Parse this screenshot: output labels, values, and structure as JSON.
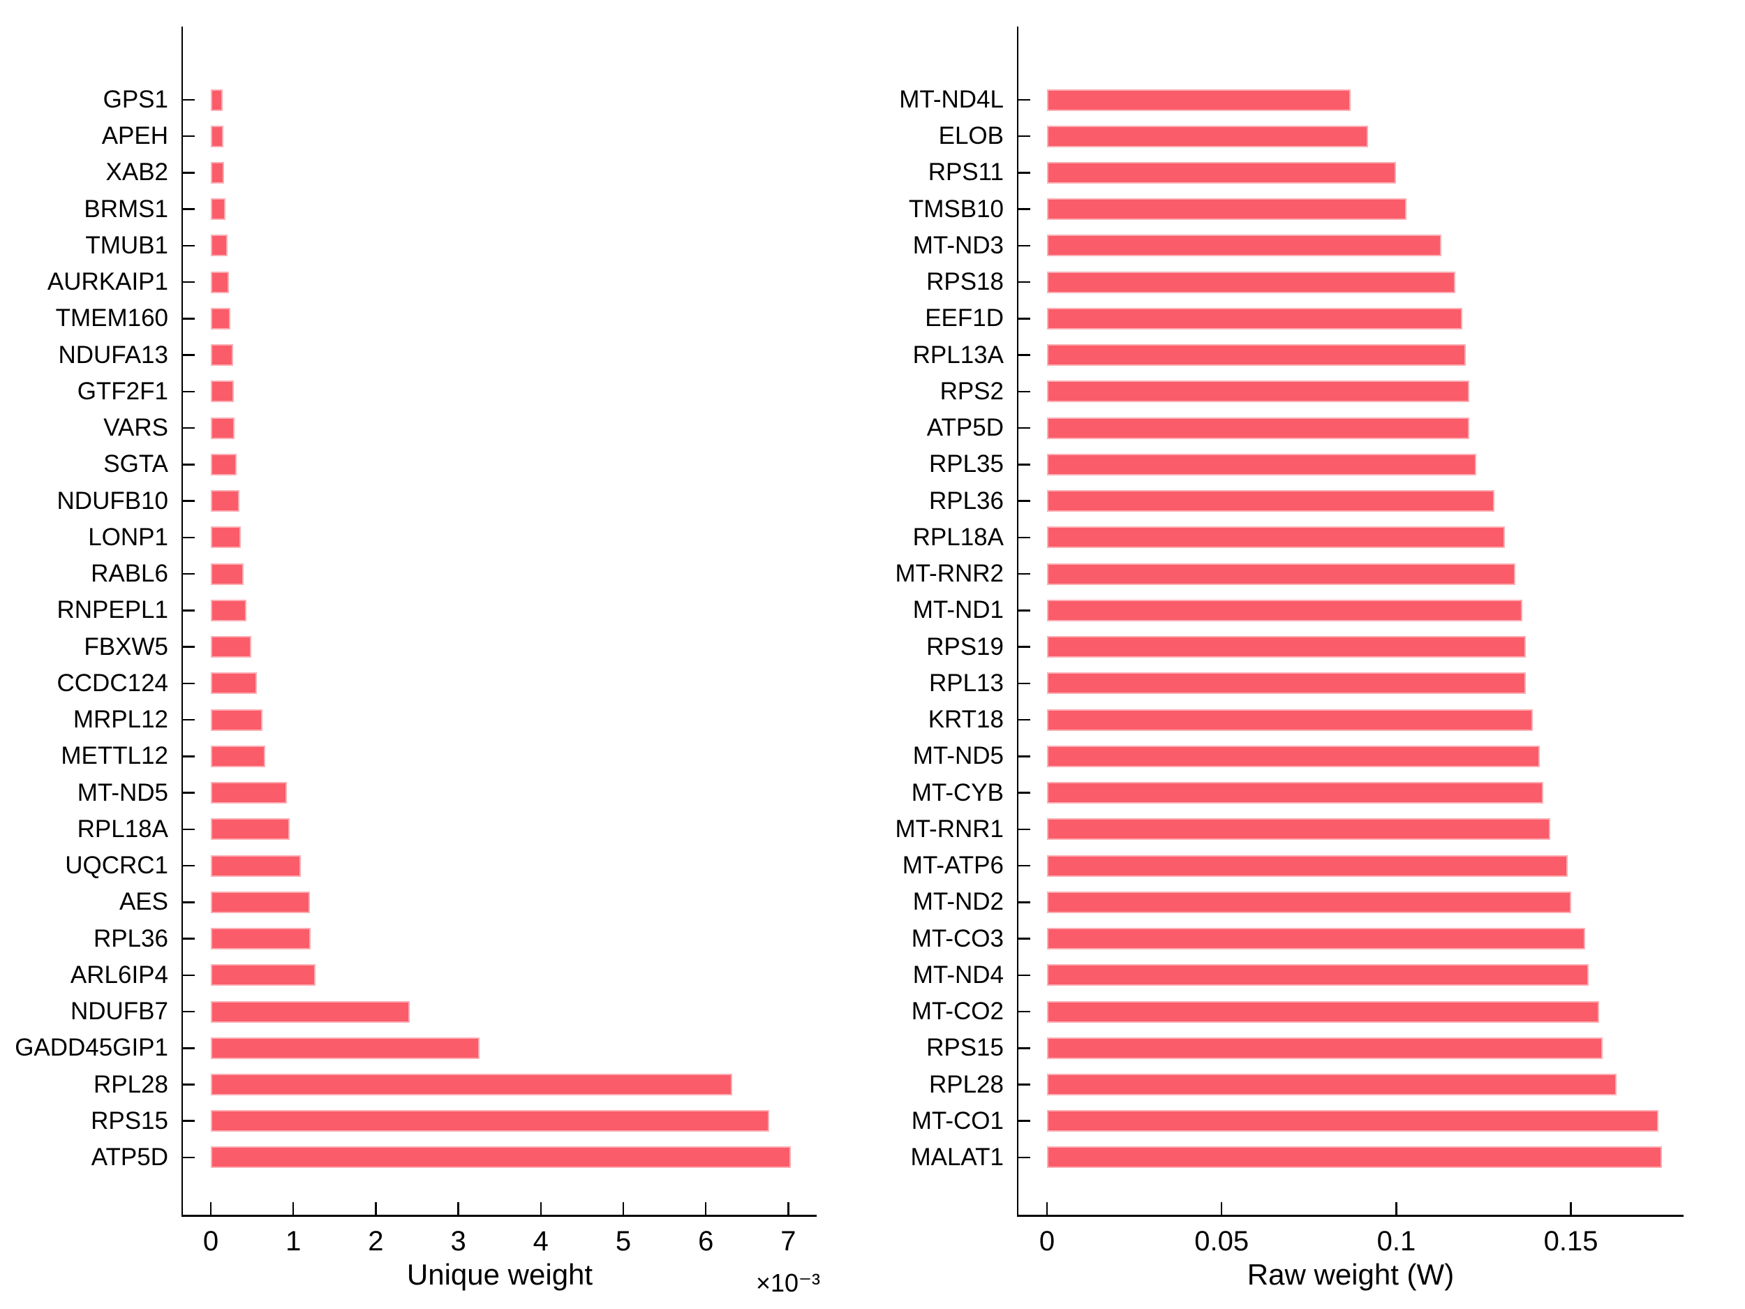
{
  "figure": {
    "background": "#ffffff",
    "axis_color": "#000000",
    "text_color": "#000000"
  },
  "chart_data": [
    {
      "type": "bar",
      "orientation": "horizontal",
      "title": "",
      "xlabel": "Unique weight",
      "x_multiplier_label": "×10⁻³",
      "value_scale_note": "values are in units of 10^-3",
      "x_ticks": [
        0,
        1,
        2,
        3,
        4,
        5,
        6,
        7
      ],
      "x_tick_labels": [
        "0",
        "1",
        "2",
        "3",
        "4",
        "5",
        "6",
        "7"
      ],
      "xlim": [
        -0.35,
        7.35
      ],
      "grid": false,
      "legend": null,
      "bar_color": "#FA5C69",
      "categories": [
        "GPS1",
        "APEH",
        "XAB2",
        "BRMS1",
        "TMUB1",
        "AURKAIP1",
        "TMEM160",
        "NDUFA13",
        "GTF2F1",
        "VARS",
        "SGTA",
        "NDUFB10",
        "LONP1",
        "RABL6",
        "RNPEPL1",
        "FBXW5",
        "CCDC124",
        "MRPL12",
        "METTL12",
        "MT-ND5",
        "RPL18A",
        "UQCRC1",
        "AES",
        "RPL36",
        "ARL6IP4",
        "NDUFB7",
        "GADD45GIP1",
        "RPL28",
        "RPS15",
        "ATP5D"
      ],
      "values": [
        0.14,
        0.15,
        0.16,
        0.18,
        0.2,
        0.22,
        0.24,
        0.27,
        0.28,
        0.29,
        0.31,
        0.35,
        0.36,
        0.4,
        0.43,
        0.49,
        0.56,
        0.63,
        0.66,
        0.92,
        0.96,
        1.09,
        1.2,
        1.21,
        1.27,
        2.41,
        3.26,
        6.32,
        6.77,
        7.03
      ]
    },
    {
      "type": "bar",
      "orientation": "horizontal",
      "title": "",
      "xlabel": "Raw weight (W)",
      "x_multiplier_label": "",
      "x_ticks": [
        0,
        0.05,
        0.1,
        0.15
      ],
      "x_tick_labels": [
        "0",
        "0.05",
        "0.1",
        "0.15"
      ],
      "xlim": [
        -0.0084,
        0.1823
      ],
      "grid": false,
      "legend": null,
      "bar_color": "#FA5C69",
      "categories": [
        "MT-ND4L",
        "ELOB",
        "RPS11",
        "TMSB10",
        "MT-ND3",
        "RPS18",
        "EEF1D",
        "RPL13A",
        "RPS2",
        "ATP5D",
        "RPL35",
        "RPL36",
        "RPL18A",
        "MT-RNR2",
        "MT-ND1",
        "RPS19",
        "RPL13",
        "KRT18",
        "MT-ND5",
        "MT-CYB",
        "MT-RNR1",
        "MT-ATP6",
        "MT-ND2",
        "MT-CO3",
        "MT-ND4",
        "MT-CO2",
        "RPS15",
        "RPL28",
        "MT-CO1",
        "MALAT1"
      ],
      "values": [
        0.087,
        0.092,
        0.1,
        0.103,
        0.113,
        0.117,
        0.119,
        0.12,
        0.121,
        0.121,
        0.123,
        0.128,
        0.131,
        0.134,
        0.136,
        0.137,
        0.137,
        0.139,
        0.141,
        0.142,
        0.144,
        0.149,
        0.15,
        0.154,
        0.155,
        0.158,
        0.159,
        0.163,
        0.175,
        0.176
      ]
    }
  ]
}
